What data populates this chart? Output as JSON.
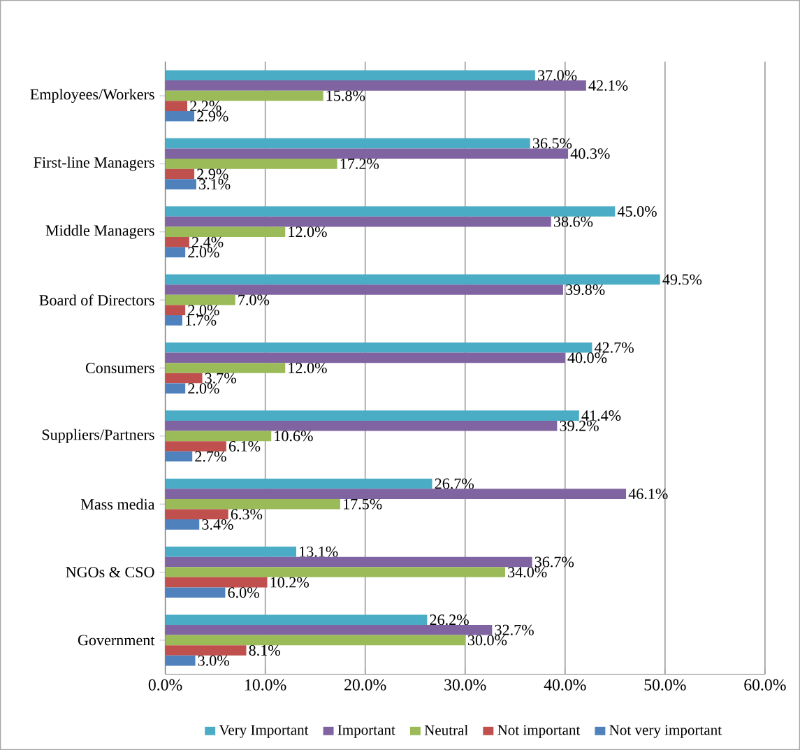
{
  "chart_data": {
    "type": "bar",
    "orientation": "horizontal",
    "categories": [
      "Employees/Workers",
      "First-line Managers",
      "Middle Managers",
      "Board of Directors",
      "Consumers",
      "Suppliers/Partners",
      "Mass media",
      "NGOs & CSO",
      "Government"
    ],
    "series": [
      {
        "name": "Very Important",
        "color": "#4bacc6",
        "values": [
          37.0,
          36.5,
          45.0,
          49.5,
          42.7,
          41.4,
          26.7,
          13.1,
          26.2
        ],
        "value_labels": [
          "37.0%",
          "36.5%",
          "45.0%",
          "49.5%",
          "42.7%",
          "41.4%",
          "26.7%",
          "13.1%",
          "26.2%"
        ]
      },
      {
        "name": "Important",
        "color": "#8064a2",
        "values": [
          42.1,
          40.3,
          38.6,
          39.8,
          40.0,
          39.2,
          46.1,
          36.7,
          32.7
        ],
        "value_labels": [
          "42.1%",
          "40.3%",
          "38.6%",
          "39.8%",
          "40.0%",
          "39.2%",
          "46.1%",
          "36.7%",
          "32.7%"
        ]
      },
      {
        "name": "Neutral",
        "color": "#9bbb59",
        "values": [
          15.8,
          17.2,
          12.0,
          7.0,
          12.0,
          10.6,
          17.5,
          34.0,
          30.0
        ],
        "value_labels": [
          "15.8%",
          "17.2%",
          "12.0%",
          "7.0%",
          "12.0%",
          "10.6%",
          "17.5%",
          "34.0%",
          "30.0%"
        ]
      },
      {
        "name": "Not important",
        "color": "#c0504d",
        "values": [
          2.2,
          2.9,
          2.4,
          2.0,
          3.7,
          6.1,
          6.3,
          10.2,
          8.1
        ],
        "value_labels": [
          "2.2%",
          "2.9%",
          "2.4%",
          "2.0%",
          "3.7%",
          "6.1%",
          "6.3%",
          "10.2%",
          "8.1%"
        ]
      },
      {
        "name": "Not very important",
        "color": "#4f81bd",
        "values": [
          2.9,
          3.1,
          2.0,
          1.7,
          2.0,
          2.7,
          3.4,
          6.0,
          3.0
        ],
        "value_labels": [
          "2.9%",
          "3.1%",
          "2.0%",
          "1.7%",
          "2.0%",
          "2.7%",
          "3.4%",
          "6.0%",
          "3.0%"
        ]
      }
    ],
    "xlim": [
      0,
      60
    ],
    "xticks": [
      {
        "value": 0,
        "label": "0.0%"
      },
      {
        "value": 10,
        "label": "10.0%"
      },
      {
        "value": 20,
        "label": "20.0%"
      },
      {
        "value": 30,
        "label": "30.0%"
      },
      {
        "value": 40,
        "label": "40.0%"
      },
      {
        "value": 50,
        "label": "50.0%"
      },
      {
        "value": 60,
        "label": "60.0%"
      }
    ],
    "grid": "x",
    "legend": "bottom"
  }
}
